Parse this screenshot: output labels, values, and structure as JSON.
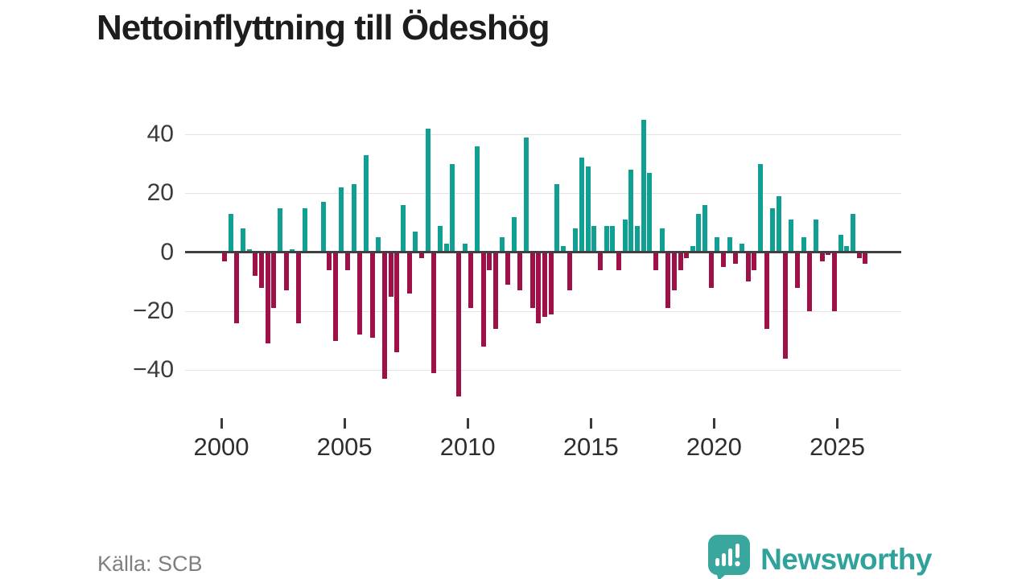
{
  "title": "Nettoinflyttning till Ödeshög",
  "source": "Källa: SCB",
  "brand": {
    "name": "Newsworthy",
    "logo_icon": "speech-bubble-bar-chart-icon"
  },
  "colors": {
    "positive_bar": "#10a093",
    "negative_bar": "#9e1047",
    "zero_axis": "#414141",
    "gridline": "#e3e3e3",
    "brand_teal": "#2fa29b",
    "title_text": "#1d1d1d",
    "axis_text": "#3a3a3a",
    "source_text": "#7f7f7f"
  },
  "chart_data": {
    "type": "bar",
    "title": "Nettoinflyttning till Ödeshög",
    "xlabel": "",
    "ylabel": "",
    "grid": "horizontal",
    "y_ticks": [
      40,
      20,
      0,
      -20,
      -40
    ],
    "x_ticks": [
      2000,
      2005,
      2010,
      2015,
      2020,
      2025
    ],
    "ylim": [
      -52,
      47
    ],
    "period": "quarterly",
    "start_period": "2000Q1",
    "periods_per_year": 4,
    "series": [
      {
        "name": "Nettoinflyttning",
        "values": [
          -3,
          13,
          -24,
          8,
          1,
          -8,
          -12,
          -31,
          -19,
          15,
          -13,
          1,
          -24,
          15,
          0,
          0,
          17,
          -6,
          -30,
          22,
          -6,
          23,
          -28,
          33,
          -29,
          5,
          -43,
          -15,
          -34,
          16,
          -14,
          7,
          -2,
          42,
          -41,
          9,
          3,
          30,
          -49,
          3,
          -19,
          36,
          -32,
          -6,
          -26,
          5,
          -11,
          12,
          -13,
          39,
          -19,
          -24,
          -22,
          -21,
          23,
          2,
          -13,
          8,
          32,
          29,
          9,
          -6,
          9,
          9,
          -6,
          11,
          28,
          9,
          45,
          27,
          -6,
          8,
          -19,
          -13,
          -6,
          -2,
          2,
          13,
          16,
          -12,
          5,
          -5,
          5,
          -4,
          3,
          -10,
          -6,
          30,
          -26,
          15,
          19,
          -36,
          11,
          -12,
          5,
          -20,
          11,
          -3,
          -1,
          -20,
          6,
          2,
          13,
          -2,
          -4
        ]
      }
    ]
  }
}
